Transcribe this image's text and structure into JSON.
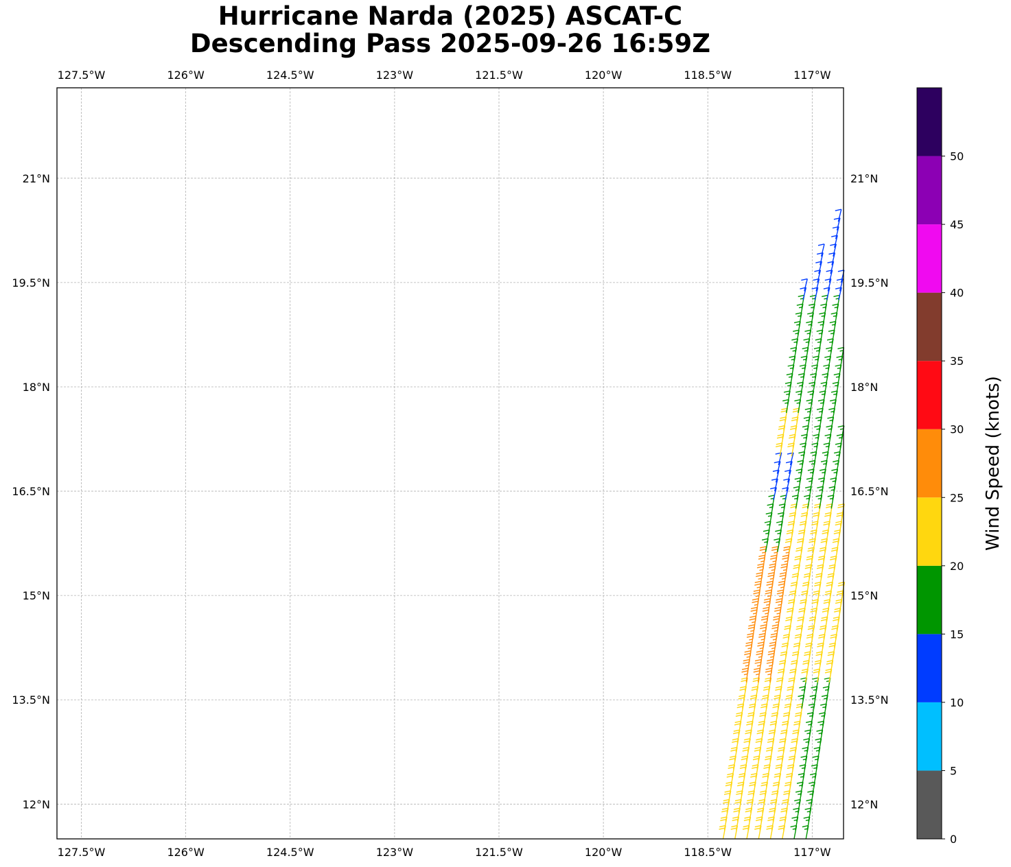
{
  "figure": {
    "title_line1": "Hurricane Narda (2025) ASCAT-C",
    "title_line2": "Descending Pass 2025-09-26 16:59Z"
  },
  "map": {
    "lon_range": [
      -127.85,
      -116.55
    ],
    "lat_range": [
      11.5,
      22.3
    ],
    "lon_ticks": [
      {
        "value": -127.5,
        "label": "127.5°W"
      },
      {
        "value": -126.0,
        "label": "126°W"
      },
      {
        "value": -124.5,
        "label": "124.5°W"
      },
      {
        "value": -123.0,
        "label": "123°W"
      },
      {
        "value": -121.5,
        "label": "121.5°W"
      },
      {
        "value": -120.0,
        "label": "120°W"
      },
      {
        "value": -118.5,
        "label": "118.5°W"
      },
      {
        "value": -117.0,
        "label": "117°W"
      }
    ],
    "lat_ticks": [
      {
        "value": 12.0,
        "label": "12°N"
      },
      {
        "value": 13.5,
        "label": "13.5°N"
      },
      {
        "value": 15.0,
        "label": "15°N"
      },
      {
        "value": 16.5,
        "label": "16.5°N"
      },
      {
        "value": 18.0,
        "label": "18°N"
      },
      {
        "value": 19.5,
        "label": "19.5°N"
      },
      {
        "value": 21.0,
        "label": "21°N"
      }
    ],
    "grid": true,
    "swath": {
      "columns": 8,
      "lon_at_south": -118.28,
      "lon_at_north": -116.68,
      "column_spacing_lon": 0.17,
      "row_spacing_lat": 0.125,
      "lat_start": 11.5,
      "lat_end": 22.3
    }
  },
  "colorbar": {
    "label": "Wind Speed (knots)",
    "bins": [
      {
        "min": 0,
        "max": 5,
        "color": "#595959"
      },
      {
        "min": 5,
        "max": 10,
        "color": "#00bfff"
      },
      {
        "min": 10,
        "max": 15,
        "color": "#003cff"
      },
      {
        "min": 15,
        "max": 20,
        "color": "#009600"
      },
      {
        "min": 20,
        "max": 25,
        "color": "#ffd70f"
      },
      {
        "min": 25,
        "max": 30,
        "color": "#ff8c0a"
      },
      {
        "min": 30,
        "max": 35,
        "color": "#ff0a14"
      },
      {
        "min": 35,
        "max": 40,
        "color": "#823c2d"
      },
      {
        "min": 40,
        "max": 45,
        "color": "#f00af0"
      },
      {
        "min": 45,
        "max": 50,
        "color": "#8c00b4"
      },
      {
        "min": 50,
        "max": 55,
        "color": "#2d005f"
      }
    ],
    "ticks": [
      {
        "value": 0,
        "label": "0"
      },
      {
        "value": 5,
        "label": "5"
      },
      {
        "value": 10,
        "label": "10"
      },
      {
        "value": 15,
        "label": "15"
      },
      {
        "value": 20,
        "label": "20"
      },
      {
        "value": 25,
        "label": "25"
      },
      {
        "value": 30,
        "label": "30"
      },
      {
        "value": 35,
        "label": "35"
      },
      {
        "value": 40,
        "label": "40"
      },
      {
        "value": 45,
        "label": "45"
      },
      {
        "value": 50,
        "label": "50"
      }
    ]
  }
}
